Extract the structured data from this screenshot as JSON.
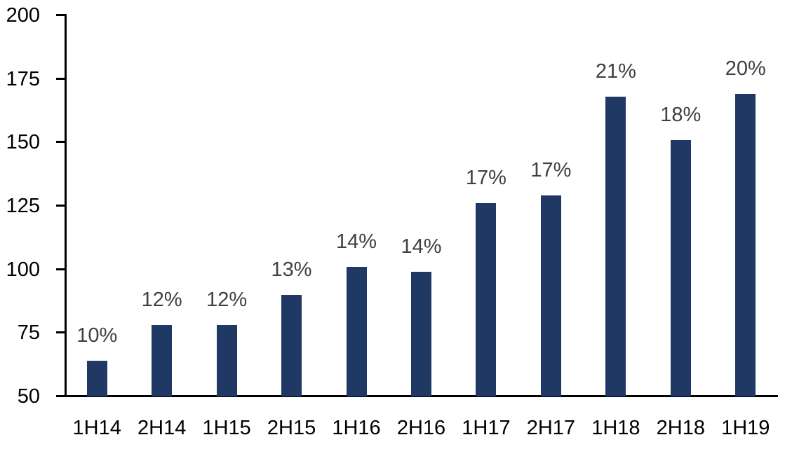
{
  "chart_data": {
    "type": "bar",
    "title": "",
    "xlabel": "",
    "ylabel": "",
    "categories": [
      "1H14",
      "2H14",
      "1H15",
      "2H15",
      "1H16",
      "2H16",
      "1H17",
      "2H17",
      "1H18",
      "2H18",
      "1H19"
    ],
    "values": [
      64,
      78,
      78,
      90,
      101,
      99,
      126,
      129,
      168,
      151,
      169
    ],
    "bar_labels": [
      "10%",
      "12%",
      "12%",
      "13%",
      "14%",
      "14%",
      "17%",
      "17%",
      "21%",
      "18%",
      "20%"
    ],
    "ylim": [
      50,
      200
    ],
    "yticks": [
      50,
      75,
      100,
      125,
      150,
      175,
      200
    ],
    "grid": false,
    "legend": "none",
    "colors": {
      "bar": "#1F3864",
      "bar_label": "#404040",
      "tick_label": "#000000",
      "axis": "#000000",
      "background": "#FFFFFF"
    }
  }
}
